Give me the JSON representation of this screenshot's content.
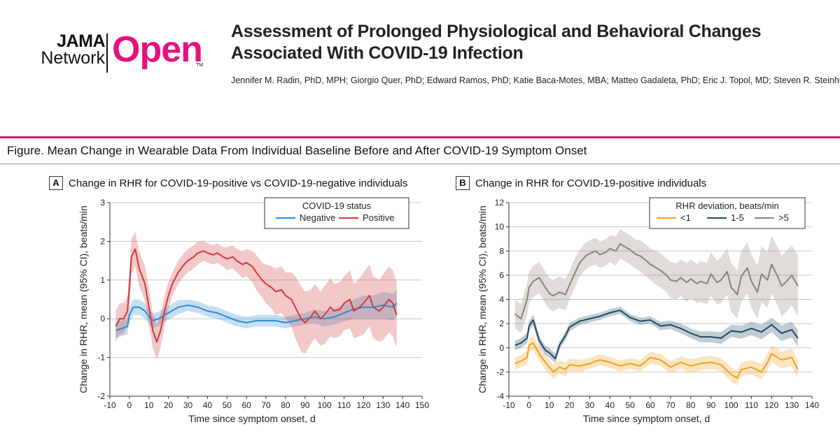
{
  "logo": {
    "line1": "JAMA",
    "line2": "Network",
    "brand": "Open",
    "tm": "TM"
  },
  "header": {
    "title": "Assessment of Prolonged Physiological and Behavioral Changes Associated With COVID-19 Infection",
    "authors": "Jennifer M. Radin, PhD, MPH; Giorgio Quer, PhD; Edward Ramos, PhD; Katie Baca-Motes, MBA; Matteo Gadaleta, PhD; Eric J. Topol, MD; Steven R. Steinhubl, MD"
  },
  "figure": {
    "title": "Figure. Mean Change in Wearable Data From Individual Baseline Before and After COVID-19 Symptom Onset"
  },
  "colors": {
    "accent": "#e5127d",
    "rule": "#d8176e",
    "negative": "#2e8bcf",
    "positive": "#d0393a",
    "lt1": "#f0a020",
    "mid": "#1f4a66",
    "gt5": "#8c8275"
  },
  "chart_data": [
    {
      "type": "line",
      "panel": "A",
      "title": "Change in RHR for COVID-19-positive vs COVID-19-negative individuals",
      "xlabel": "Time since symptom onset, d",
      "ylabel": "Change in RHR, mean (95% CI), beats/min",
      "xlim": [
        -10,
        150
      ],
      "ylim": [
        -2,
        3
      ],
      "xticks": [
        "-10",
        "0",
        "10",
        "20",
        "30",
        "40",
        "50",
        "60",
        "70",
        "80",
        "90",
        "100",
        "110",
        "120",
        "130",
        "140",
        "150"
      ],
      "yticks": [
        "-2",
        "-1",
        "0",
        "1",
        "2",
        "3"
      ],
      "grid": "horizontal",
      "legend": {
        "title": "COVID-19 status",
        "position": "top-right"
      },
      "series": [
        {
          "name": "Negative",
          "color": "#2e8bcf",
          "x": [
            -7,
            -4,
            -1,
            0,
            2,
            5,
            8,
            10,
            12,
            15,
            18,
            20,
            25,
            30,
            35,
            40,
            45,
            50,
            55,
            60,
            65,
            70,
            75,
            80,
            85,
            90,
            95,
            100,
            105,
            110,
            115,
            120,
            125,
            130,
            135,
            137
          ],
          "y": [
            -0.3,
            -0.25,
            -0.2,
            0.1,
            0.3,
            0.3,
            0.2,
            0.05,
            -0.05,
            0.0,
            0.1,
            0.15,
            0.3,
            0.35,
            0.3,
            0.2,
            0.15,
            0.05,
            -0.05,
            -0.1,
            -0.05,
            -0.05,
            -0.05,
            -0.1,
            -0.05,
            0.0,
            0.05,
            0.0,
            0.05,
            0.15,
            0.25,
            0.3,
            0.3,
            0.35,
            0.3,
            0.4
          ],
          "ci": [
            0.2,
            0.2,
            0.2,
            0.2,
            0.2,
            0.2,
            0.2,
            0.2,
            0.2,
            0.18,
            0.18,
            0.18,
            0.18,
            0.15,
            0.15,
            0.15,
            0.15,
            0.15,
            0.15,
            0.15,
            0.15,
            0.15,
            0.15,
            0.15,
            0.15,
            0.15,
            0.18,
            0.2,
            0.2,
            0.22,
            0.25,
            0.3,
            0.3,
            0.35,
            0.35,
            0.35
          ]
        },
        {
          "name": "Positive",
          "color": "#d0393a",
          "x": [
            -7,
            -5,
            -3,
            -1,
            0,
            1,
            3,
            5,
            8,
            10,
            12,
            14,
            16,
            18,
            20,
            22,
            25,
            28,
            30,
            33,
            35,
            38,
            40,
            43,
            45,
            48,
            50,
            53,
            55,
            58,
            60,
            63,
            65,
            68,
            70,
            73,
            75,
            78,
            80,
            83,
            85,
            88,
            90,
            93,
            95,
            98,
            100,
            103,
            105,
            108,
            110,
            113,
            115,
            118,
            120,
            123,
            125,
            128,
            130,
            133,
            135,
            137
          ],
          "y": [
            -0.2,
            0.0,
            0.0,
            0.2,
            0.8,
            1.6,
            1.8,
            1.3,
            0.9,
            0.3,
            -0.3,
            -0.6,
            -0.3,
            0.2,
            0.6,
            0.9,
            1.2,
            1.4,
            1.5,
            1.6,
            1.7,
            1.75,
            1.7,
            1.65,
            1.7,
            1.6,
            1.55,
            1.6,
            1.5,
            1.4,
            1.45,
            1.35,
            1.2,
            1.0,
            0.9,
            0.8,
            0.7,
            0.75,
            0.6,
            0.5,
            0.3,
            0.0,
            -0.1,
            0.05,
            0.2,
            0.0,
            0.1,
            0.3,
            0.2,
            0.25,
            0.4,
            0.5,
            0.2,
            0.3,
            0.4,
            0.6,
            0.3,
            0.2,
            0.3,
            0.5,
            0.4,
            0.1
          ],
          "ci": [
            0.4,
            0.4,
            0.4,
            0.4,
            0.45,
            0.45,
            0.45,
            0.45,
            0.45,
            0.45,
            0.45,
            0.45,
            0.45,
            0.4,
            0.35,
            0.3,
            0.3,
            0.3,
            0.3,
            0.3,
            0.3,
            0.25,
            0.25,
            0.25,
            0.25,
            0.25,
            0.3,
            0.3,
            0.3,
            0.35,
            0.35,
            0.4,
            0.45,
            0.45,
            0.5,
            0.55,
            0.6,
            0.6,
            0.6,
            0.7,
            0.8,
            0.85,
            0.8,
            0.7,
            0.7,
            0.7,
            0.75,
            0.75,
            0.7,
            0.7,
            0.7,
            0.75,
            0.7,
            0.75,
            0.8,
            0.8,
            0.8,
            0.8,
            0.85,
            0.85,
            0.85,
            0.85
          ]
        }
      ]
    },
    {
      "type": "line",
      "panel": "B",
      "title": "Change in RHR for COVID-19-positive individuals",
      "xlabel": "Time since symptom onset, d",
      "ylabel": "Change in RHR, mean (95% CI), beats/min",
      "xlim": [
        -10,
        140
      ],
      "ylim": [
        -4,
        12
      ],
      "xticks": [
        "-10",
        "0",
        "10",
        "20",
        "30",
        "40",
        "50",
        "60",
        "70",
        "80",
        "90",
        "100",
        "110",
        "120",
        "130",
        "140"
      ],
      "yticks": [
        "-4",
        "-2",
        "0",
        "2",
        "4",
        "6",
        "8",
        "10",
        "12"
      ],
      "grid": "horizontal",
      "legend": {
        "title": "RHR deviation, beats/min",
        "position": "top-right"
      },
      "series": [
        {
          "name": "<1",
          "color": "#f0a020",
          "x": [
            -7,
            -4,
            -1,
            0,
            2,
            5,
            8,
            10,
            12,
            15,
            18,
            20,
            25,
            30,
            35,
            40,
            45,
            50,
            55,
            60,
            65,
            70,
            75,
            80,
            85,
            90,
            95,
            100,
            103,
            105,
            110,
            115,
            118,
            120,
            125,
            130,
            133
          ],
          "y": [
            -1.3,
            -1.1,
            -0.8,
            0.2,
            0.4,
            -0.5,
            -1.2,
            -1.6,
            -2.0,
            -1.6,
            -1.8,
            -1.4,
            -1.5,
            -1.3,
            -1.0,
            -1.2,
            -1.5,
            -1.3,
            -1.5,
            -0.8,
            -1.0,
            -1.6,
            -1.2,
            -1.5,
            -1.3,
            -1.2,
            -1.4,
            -2.2,
            -2.5,
            -1.8,
            -1.6,
            -2.0,
            -1.2,
            -0.5,
            -1.0,
            -0.8,
            -1.8
          ],
          "ci": [
            0.5,
            0.5,
            0.6,
            0.6,
            0.6,
            0.6,
            0.6,
            0.6,
            0.6,
            0.55,
            0.55,
            0.5,
            0.5,
            0.45,
            0.45,
            0.45,
            0.45,
            0.45,
            0.45,
            0.5,
            0.5,
            0.5,
            0.5,
            0.55,
            0.55,
            0.55,
            0.55,
            0.6,
            0.6,
            0.6,
            0.6,
            0.65,
            0.7,
            0.7,
            0.7,
            0.75,
            0.75
          ]
        },
        {
          "name": "1-5",
          "color": "#1f4a66",
          "x": [
            -7,
            -4,
            -1,
            0,
            2,
            5,
            8,
            10,
            13,
            15,
            18,
            20,
            25,
            30,
            35,
            40,
            45,
            50,
            55,
            60,
            65,
            70,
            75,
            80,
            85,
            90,
            95,
            100,
            105,
            110,
            115,
            120,
            125,
            130,
            133
          ],
          "y": [
            0.2,
            0.4,
            0.8,
            1.8,
            2.3,
            0.6,
            -0.2,
            -0.4,
            -0.9,
            0.2,
            1.0,
            1.7,
            2.2,
            2.4,
            2.6,
            2.9,
            3.1,
            2.5,
            2.2,
            2.3,
            1.8,
            1.9,
            1.6,
            1.2,
            0.9,
            0.9,
            0.8,
            1.4,
            1.3,
            1.6,
            1.3,
            1.9,
            1.2,
            1.5,
            0.8
          ],
          "ci": [
            0.4,
            0.4,
            0.45,
            0.45,
            0.45,
            0.4,
            0.4,
            0.4,
            0.4,
            0.35,
            0.35,
            0.35,
            0.3,
            0.3,
            0.3,
            0.3,
            0.3,
            0.3,
            0.3,
            0.3,
            0.35,
            0.35,
            0.4,
            0.4,
            0.45,
            0.45,
            0.5,
            0.5,
            0.55,
            0.55,
            0.6,
            0.6,
            0.65,
            0.65,
            0.7
          ]
        },
        {
          "name": ">5",
          "color": "#8c8275",
          "x": [
            -7,
            -4,
            -1,
            0,
            2,
            5,
            8,
            10,
            12,
            15,
            18,
            20,
            23,
            25,
            28,
            30,
            33,
            35,
            38,
            40,
            43,
            45,
            48,
            50,
            53,
            55,
            58,
            60,
            63,
            65,
            68,
            70,
            73,
            75,
            78,
            80,
            83,
            85,
            88,
            90,
            93,
            95,
            98,
            100,
            103,
            105,
            108,
            110,
            113,
            115,
            118,
            120,
            123,
            125,
            128,
            130,
            133
          ],
          "y": [
            2.8,
            2.4,
            4.0,
            5.0,
            5.5,
            5.8,
            5.0,
            4.5,
            4.3,
            4.6,
            4.4,
            5.2,
            6.3,
            7.0,
            7.6,
            7.8,
            8.0,
            7.7,
            7.9,
            8.2,
            8.0,
            8.6,
            8.3,
            8.1,
            7.7,
            7.6,
            7.2,
            6.9,
            6.6,
            6.4,
            6.0,
            5.6,
            5.5,
            5.8,
            5.4,
            5.7,
            5.3,
            5.5,
            5.3,
            6.1,
            5.4,
            5.6,
            6.3,
            5.0,
            4.4,
            5.9,
            6.6,
            5.5,
            4.6,
            6.1,
            5.6,
            6.9,
            5.9,
            5.1,
            5.6,
            6.0,
            5.1
          ],
          "ci": [
            1.2,
            1.2,
            1.3,
            1.3,
            1.3,
            1.3,
            1.3,
            1.3,
            1.3,
            1.3,
            1.3,
            1.2,
            1.2,
            1.1,
            1.1,
            1.1,
            1.1,
            1.1,
            1.1,
            1.1,
            1.2,
            1.2,
            1.2,
            1.2,
            1.2,
            1.3,
            1.3,
            1.3,
            1.4,
            1.4,
            1.4,
            1.5,
            1.5,
            1.5,
            1.6,
            1.6,
            1.6,
            1.7,
            1.7,
            1.8,
            1.8,
            1.9,
            1.9,
            2.0,
            2.0,
            2.1,
            2.1,
            2.2,
            2.2,
            2.3,
            2.3,
            2.4,
            2.4,
            2.5,
            2.5,
            2.5,
            2.5
          ]
        }
      ]
    }
  ]
}
